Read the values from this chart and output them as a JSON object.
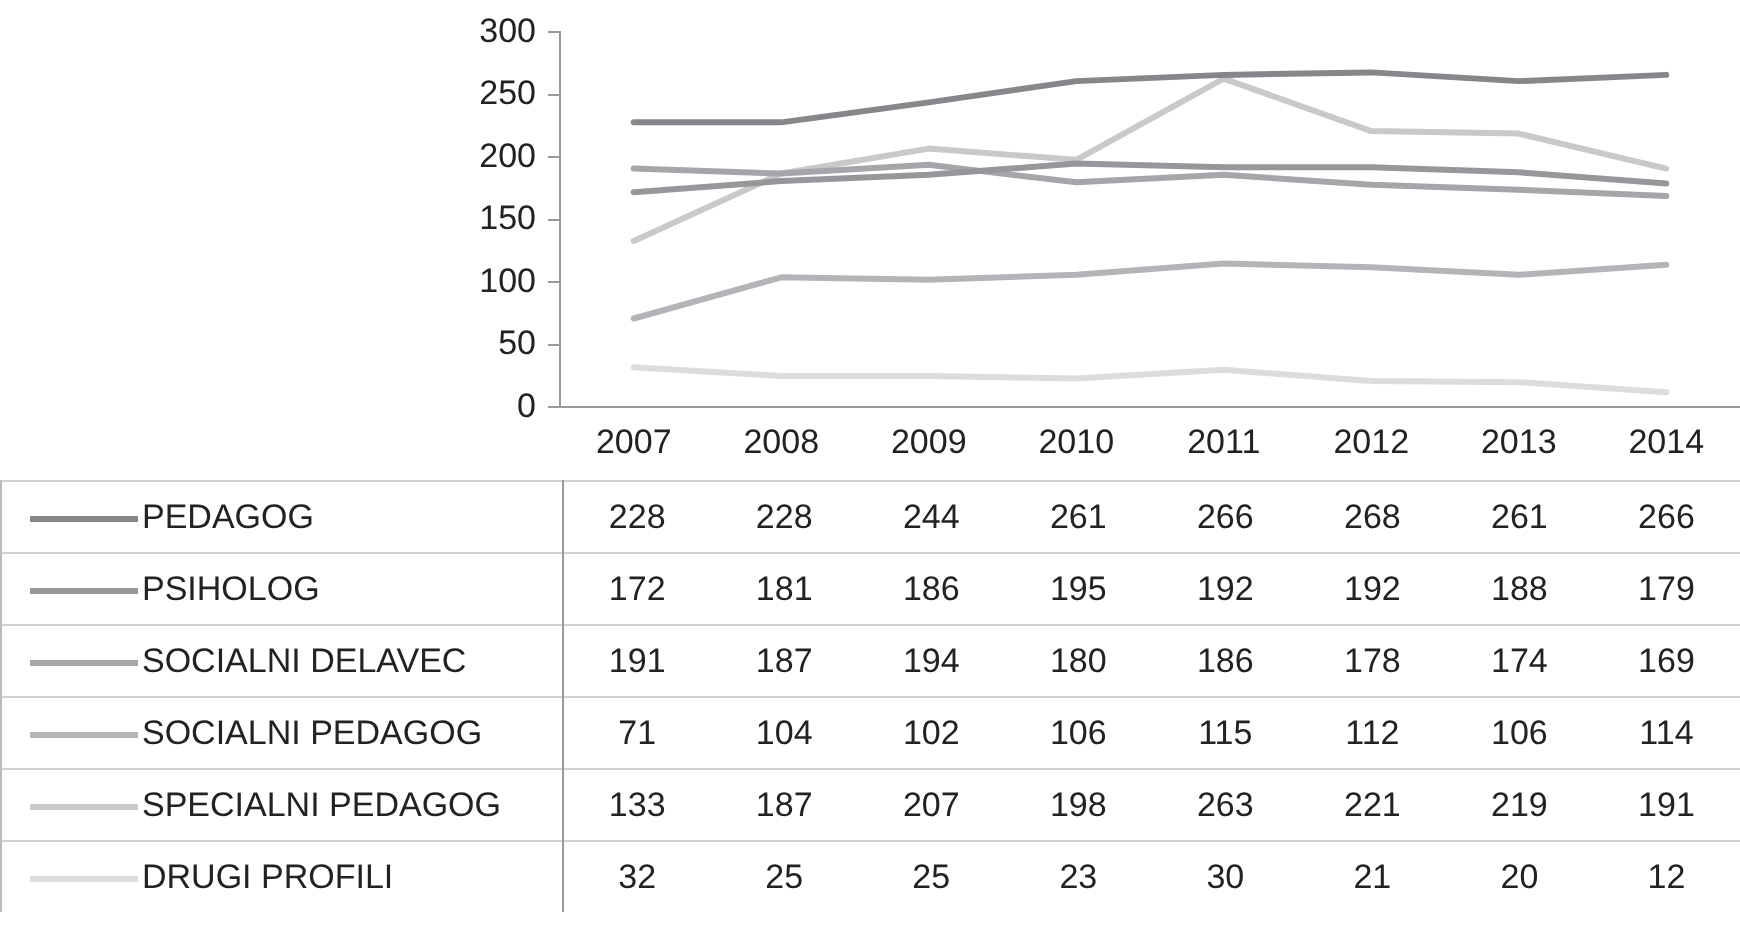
{
  "chart_data": {
    "type": "line",
    "categories": [
      "2007",
      "2008",
      "2009",
      "2010",
      "2011",
      "2012",
      "2013",
      "2014"
    ],
    "series": [
      {
        "name": "PEDAGOG",
        "color": "#86878b",
        "values": [
          228,
          228,
          244,
          261,
          266,
          268,
          261,
          266
        ]
      },
      {
        "name": "PSIHOLOG",
        "color": "#96979b",
        "values": [
          172,
          181,
          186,
          195,
          192,
          192,
          188,
          179
        ]
      },
      {
        "name": "SOCIALNI DELAVEC",
        "color": "#a5a6aa",
        "values": [
          191,
          187,
          194,
          180,
          186,
          178,
          174,
          169
        ]
      },
      {
        "name": "SOCIALNI PEDAGOG",
        "color": "#b3b4b8",
        "values": [
          71,
          104,
          102,
          106,
          115,
          112,
          106,
          114
        ]
      },
      {
        "name": "SPECIALNI PEDAGOG",
        "color": "#c8c9cb",
        "values": [
          133,
          187,
          207,
          198,
          263,
          221,
          219,
          191
        ]
      },
      {
        "name": "DRUGI PROFILI",
        "color": "#dcdcdd",
        "values": [
          32,
          25,
          25,
          23,
          30,
          21,
          20,
          12
        ]
      }
    ],
    "ylim": [
      0,
      300
    ],
    "yticks": [
      0,
      50,
      100,
      150,
      200,
      250,
      300
    ],
    "grid": false,
    "legend": "bottom",
    "data_labels": true,
    "marker": "none",
    "line_style": "solid"
  }
}
